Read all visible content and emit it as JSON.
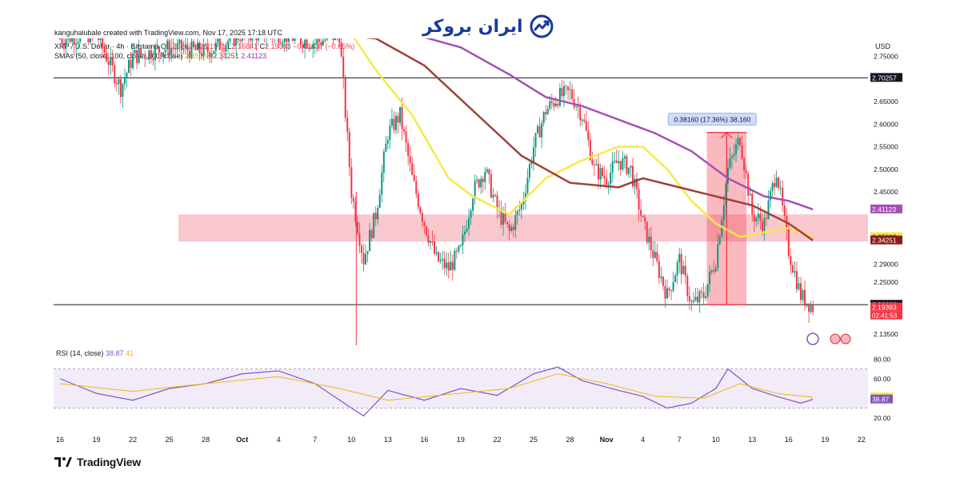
{
  "brand": {
    "name": "ایران بروکر",
    "logo_icon": "trend-chart-icon"
  },
  "header": {
    "credit": "kanguhalubale created with TradingView.com, Nov 17, 2025 17:18 UTC",
    "symbol": "XRP / U.S. Dollar · 4h · Bitstamp",
    "ohlc": {
      "open_label": "O",
      "open": "2.20792",
      "high_label": "H",
      "high": "2.21971",
      "low_label": "L",
      "low": "2.16841",
      "close_label": "C",
      "close": "2.19393",
      "change": "−0.01437 (−0.65%)"
    },
    "sma_label": "SMAs (50, close, 100, close, 200, close)",
    "sma_values": [
      "2.35008",
      "2.34251",
      "2.41123"
    ],
    "currency": "USD"
  },
  "footer": {
    "tradingview": "TradingView"
  },
  "colors": {
    "up": "#089981",
    "down": "#f23645",
    "sma50": "#f5e94b",
    "sma100": "#a0413a",
    "sma200": "#a64fb5",
    "zone": "#f7b6bd",
    "rsi": "#7e57c2",
    "rsi_ma": "#f0b90b"
  },
  "chart_data": [
    {
      "type": "candlestick",
      "title": "XRP / U.S. Dollar · 4h · Bitstamp",
      "ylabel": "USD",
      "ylim": [
        2.11,
        2.79
      ],
      "x_ticks": [
        "16",
        "19",
        "22",
        "25",
        "28",
        "Oct",
        "4",
        "7",
        "10",
        "13",
        "16",
        "19",
        "22",
        "25",
        "28",
        "Nov",
        "4",
        "7",
        "10",
        "13",
        "16",
        "19",
        "22"
      ],
      "y_ticks": [
        "2.75000",
        "2.70257",
        "2.65000",
        "2.60000",
        "2.55000",
        "2.50000",
        "2.45000",
        "2.41123",
        "2.35008",
        "2.34251",
        "2.29000",
        "2.25000",
        "2.20000",
        "2.19393",
        "2.13500"
      ],
      "price_path": [
        [
          "Sep 16",
          2.79
        ],
        [
          "Sep 19",
          2.8
        ],
        [
          "Sep 21",
          2.68
        ],
        [
          "Sep 22",
          2.75
        ],
        [
          "Sep 25",
          2.77
        ],
        [
          "Sep 28",
          2.76
        ],
        [
          "Oct 1",
          2.8
        ],
        [
          "Oct 4",
          2.8
        ],
        [
          "Oct 7",
          2.78
        ],
        [
          "Oct 9",
          2.8
        ],
        [
          "Oct 10",
          2.45
        ],
        [
          "Oct 11",
          2.3
        ],
        [
          "Oct 12",
          2.4
        ],
        [
          "Oct 13",
          2.58
        ],
        [
          "Oct 14",
          2.62
        ],
        [
          "Oct 15",
          2.48
        ],
        [
          "Oct 16",
          2.38
        ],
        [
          "Oct 17",
          2.3
        ],
        [
          "Oct 18",
          2.28
        ],
        [
          "Oct 19",
          2.32
        ],
        [
          "Oct 20",
          2.45
        ],
        [
          "Oct 21",
          2.5
        ],
        [
          "Oct 22",
          2.41
        ],
        [
          "Oct 23",
          2.36
        ],
        [
          "Oct 24",
          2.42
        ],
        [
          "Oct 25",
          2.55
        ],
        [
          "Oct 26",
          2.63
        ],
        [
          "Oct 27",
          2.66
        ],
        [
          "Oct 28",
          2.67
        ],
        [
          "Oct 29",
          2.62
        ],
        [
          "Oct 30",
          2.5
        ],
        [
          "Oct 31",
          2.48
        ],
        [
          "Nov 1",
          2.52
        ],
        [
          "Nov 2",
          2.5
        ],
        [
          "Nov 3",
          2.38
        ],
        [
          "Nov 4",
          2.3
        ],
        [
          "Nov 5",
          2.22
        ],
        [
          "Nov 6",
          2.3
        ],
        [
          "Nov 7",
          2.2
        ],
        [
          "Nov 8",
          2.22
        ],
        [
          "Nov 9",
          2.3
        ],
        [
          "Nov 10",
          2.5
        ],
        [
          "Nov 11",
          2.57
        ],
        [
          "Nov 12",
          2.4
        ],
        [
          "Nov 13",
          2.38
        ],
        [
          "Nov 14",
          2.5
        ],
        [
          "Nov 15",
          2.32
        ],
        [
          "Nov 16",
          2.22
        ],
        [
          "Nov 17",
          2.19393
        ]
      ],
      "series": [
        {
          "name": "SMA 50",
          "last": 2.35008,
          "values": [
            [
              "Oct 10",
              2.8
            ],
            [
              "Oct 12",
              2.72
            ],
            [
              "Oct 15",
              2.62
            ],
            [
              "Oct 18",
              2.48
            ],
            [
              "Oct 20",
              2.44
            ],
            [
              "Oct 23",
              2.4
            ],
            [
              "Oct 26",
              2.48
            ],
            [
              "Oct 29",
              2.52
            ],
            [
              "Nov 1",
              2.55
            ],
            [
              "Nov 3",
              2.55
            ],
            [
              "Nov 5",
              2.5
            ],
            [
              "Nov 7",
              2.43
            ],
            [
              "Nov 9",
              2.38
            ],
            [
              "Nov 11",
              2.35
            ],
            [
              "Nov 13",
              2.36
            ],
            [
              "Nov 15",
              2.37
            ],
            [
              "Nov 17",
              2.35008
            ]
          ]
        },
        {
          "name": "SMA 100",
          "last": 2.34251,
          "values": [
            [
              "Oct 8",
              2.8
            ],
            [
              "Oct 12",
              2.79
            ],
            [
              "Oct 16",
              2.73
            ],
            [
              "Oct 20",
              2.63
            ],
            [
              "Oct 24",
              2.53
            ],
            [
              "Oct 28",
              2.47
            ],
            [
              "Nov 1",
              2.46
            ],
            [
              "Nov 3",
              2.48
            ],
            [
              "Nov 6",
              2.46
            ],
            [
              "Nov 9",
              2.44
            ],
            [
              "Nov 12",
              2.42
            ],
            [
              "Nov 15",
              2.38
            ],
            [
              "Nov 17",
              2.34251
            ]
          ]
        },
        {
          "name": "SMA 200",
          "last": 2.41123,
          "values": [
            [
              "Oct 15",
              2.8
            ],
            [
              "Oct 19",
              2.77
            ],
            [
              "Oct 23",
              2.71
            ],
            [
              "Oct 26",
              2.66
            ],
            [
              "Oct 29",
              2.64
            ],
            [
              "Nov 1",
              2.61
            ],
            [
              "Nov 4",
              2.58
            ],
            [
              "Nov 7",
              2.54
            ],
            [
              "Nov 10",
              2.48
            ],
            [
              "Nov 13",
              2.44
            ],
            [
              "Nov 15",
              2.43
            ],
            [
              "Nov 17",
              2.41123
            ]
          ]
        }
      ],
      "horizontal_lines": [
        2.70257,
        2.2
      ],
      "zone": {
        "top": 2.4,
        "bottom": 2.34
      },
      "measure": {
        "from": 2.2,
        "to": 2.5816,
        "label": "0.38160 (17.36%) 38,160"
      },
      "grid": false,
      "legend": "top-left"
    },
    {
      "type": "line",
      "title": "RSI (14, close)",
      "ylim": [
        10,
        90
      ],
      "y_ticks": [
        "80.00",
        "60.00",
        "41.00",
        "38.87",
        "20.00"
      ],
      "band": [
        30,
        70
      ],
      "series": [
        {
          "name": "RSI",
          "last": 38.87,
          "values": [
            [
              "Sep 16",
              60
            ],
            [
              "Sep 19",
              45
            ],
            [
              "Sep 22",
              38
            ],
            [
              "Sep 25",
              50
            ],
            [
              "Sep 28",
              55
            ],
            [
              "Oct 1",
              65
            ],
            [
              "Oct 4",
              68
            ],
            [
              "Oct 7",
              55
            ],
            [
              "Oct 10",
              30
            ],
            [
              "Oct 11",
              22
            ],
            [
              "Oct 13",
              48
            ],
            [
              "Oct 16",
              38
            ],
            [
              "Oct 19",
              50
            ],
            [
              "Oct 22",
              43
            ],
            [
              "Oct 25",
              65
            ],
            [
              "Oct 27",
              72
            ],
            [
              "Oct 29",
              58
            ],
            [
              "Nov 1",
              48
            ],
            [
              "Nov 3",
              42
            ],
            [
              "Nov 5",
              30
            ],
            [
              "Nov 7",
              35
            ],
            [
              "Nov 9",
              50
            ],
            [
              "Nov 10",
              70
            ],
            [
              "Nov 12",
              50
            ],
            [
              "Nov 14",
              42
            ],
            [
              "Nov 16",
              35
            ],
            [
              "Nov 17",
              38.87
            ]
          ]
        },
        {
          "name": "RSI MA",
          "last": 41.0,
          "values": [
            [
              "Sep 16",
              55
            ],
            [
              "Sep 22",
              47
            ],
            [
              "Sep 28",
              55
            ],
            [
              "Oct 4",
              62
            ],
            [
              "Oct 9",
              50
            ],
            [
              "Oct 13",
              38
            ],
            [
              "Oct 18",
              44
            ],
            [
              "Oct 23",
              50
            ],
            [
              "Oct 27",
              65
            ],
            [
              "Oct 31",
              55
            ],
            [
              "Nov 4",
              42
            ],
            [
              "Nov 8",
              40
            ],
            [
              "Nov 11",
              55
            ],
            [
              "Nov 14",
              45
            ],
            [
              "Nov 17",
              41
            ]
          ]
        }
      ]
    }
  ]
}
